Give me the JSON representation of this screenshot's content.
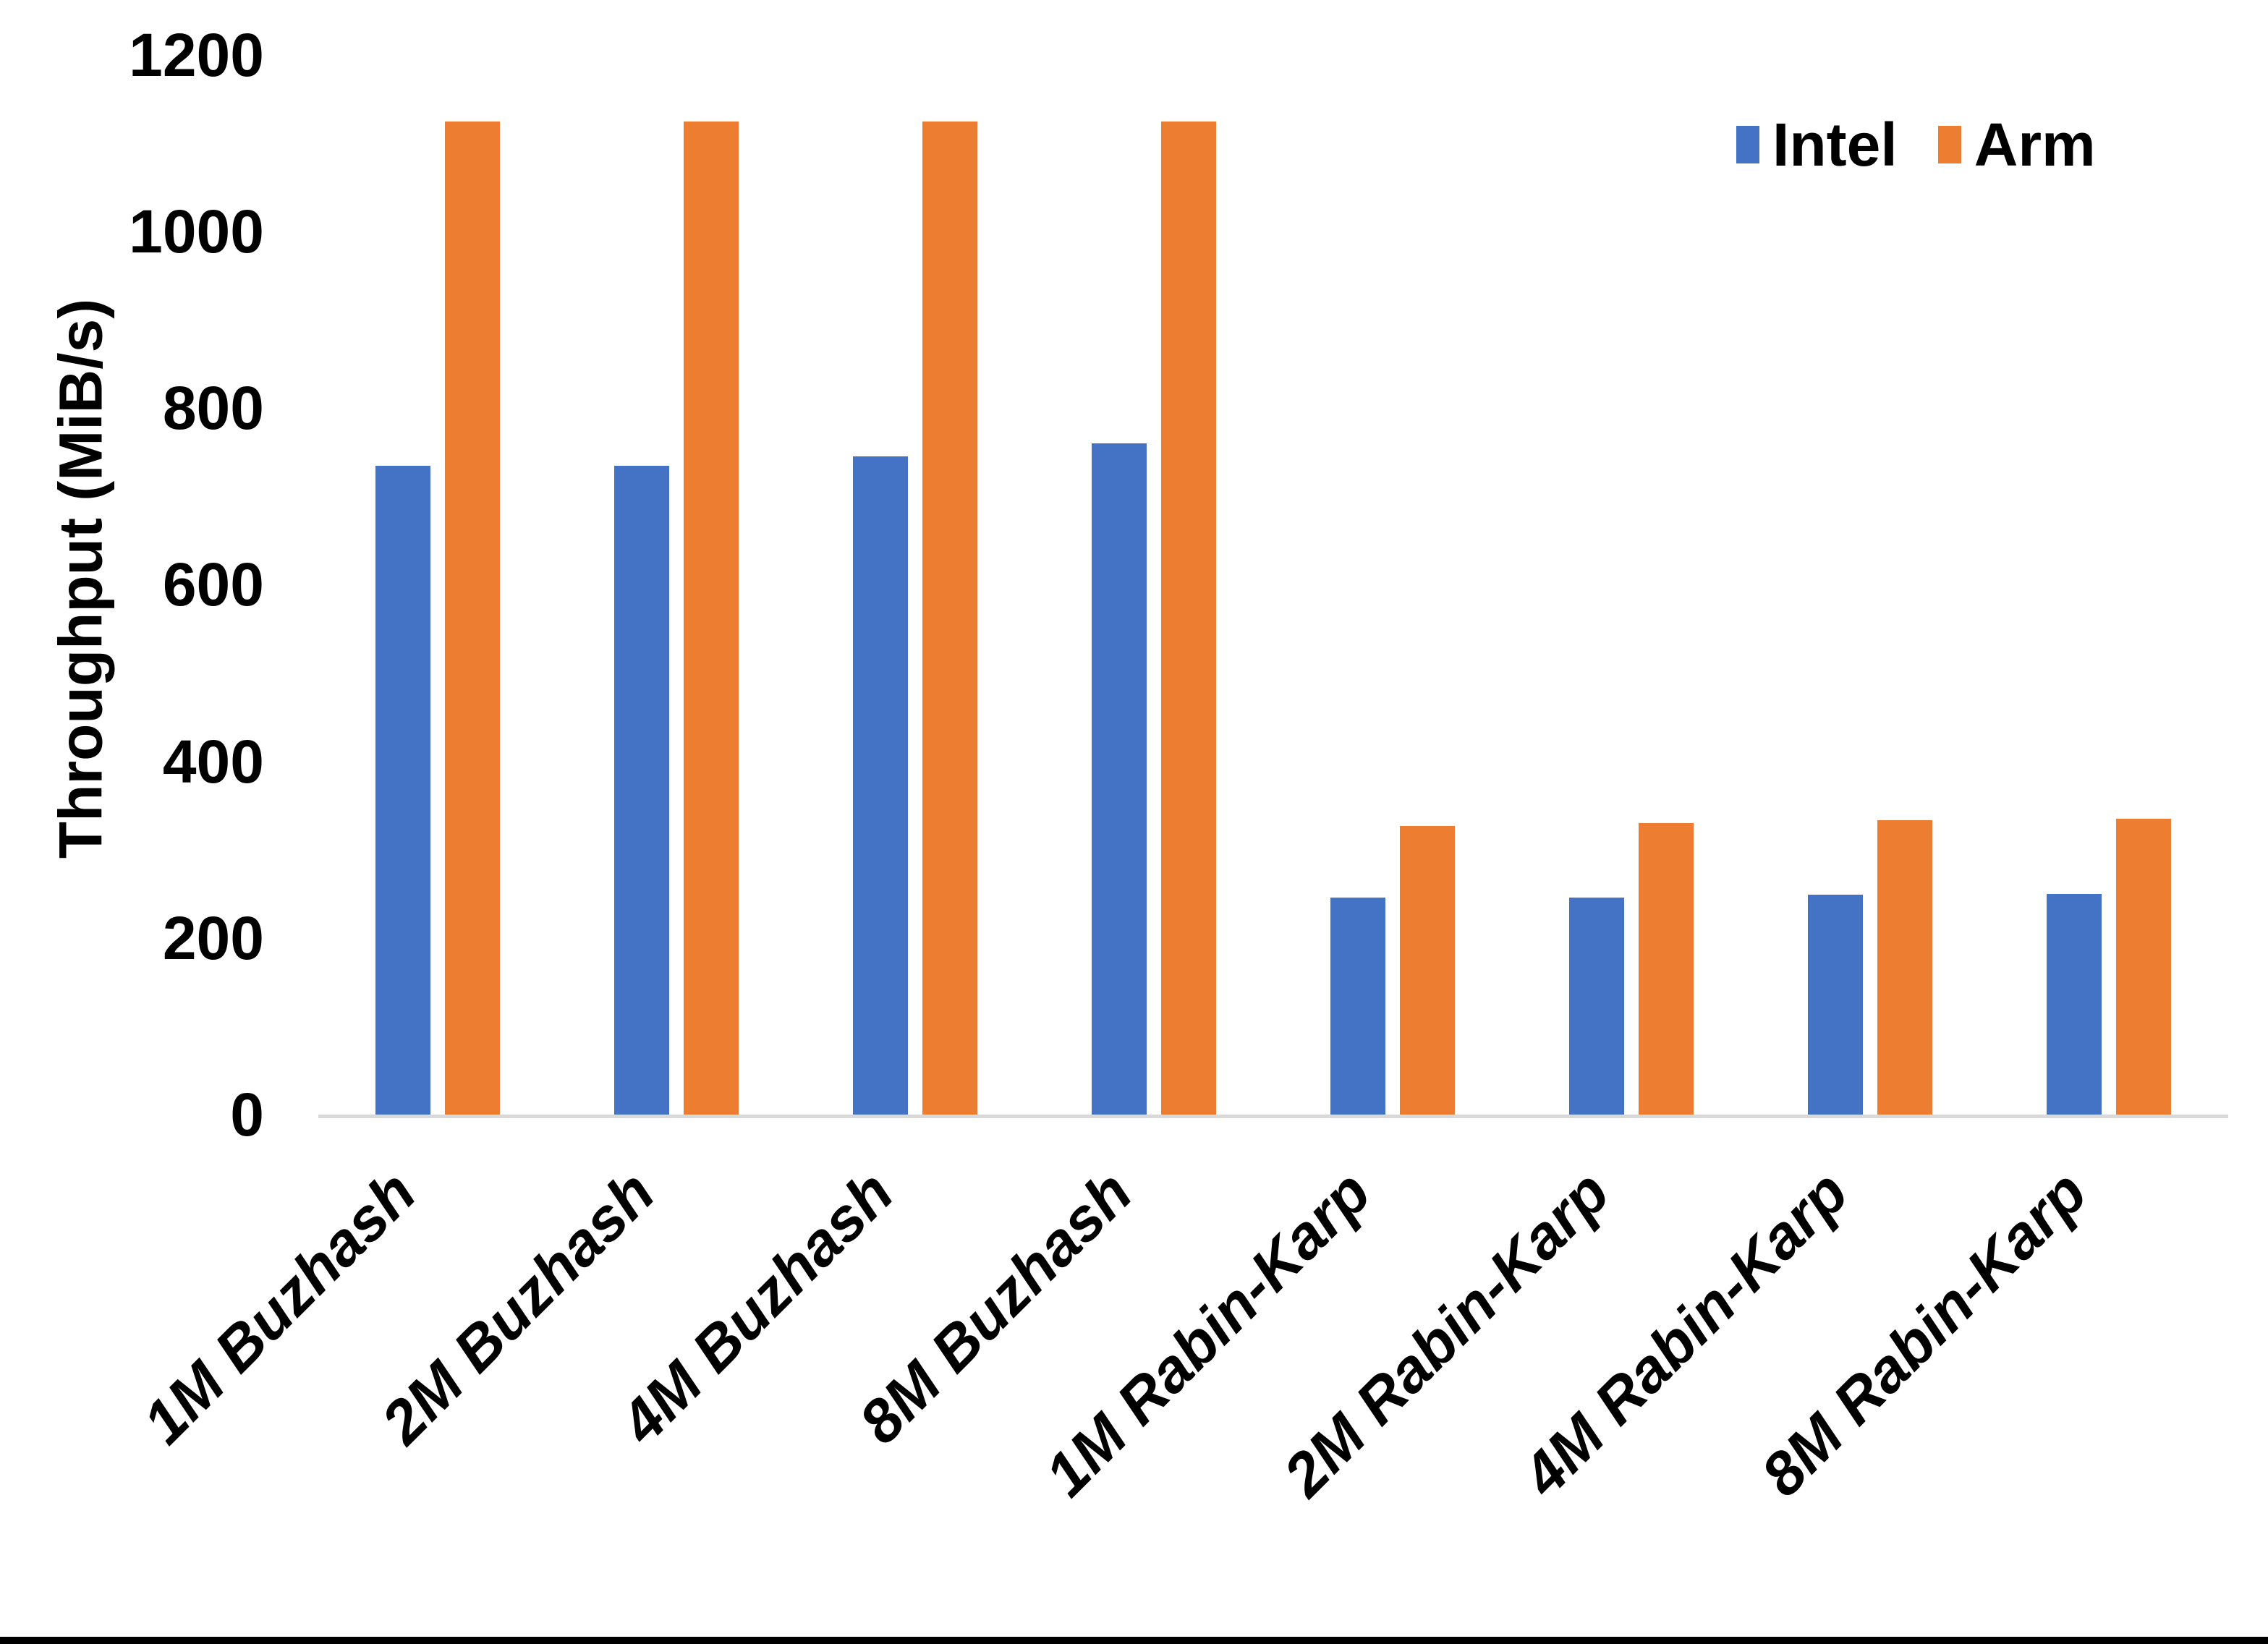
{
  "chart_data": {
    "type": "bar",
    "title": "",
    "xlabel": "",
    "ylabel": "Throughput (MiB/s)",
    "ylim": [
      0,
      1200
    ],
    "y_ticks": [
      0,
      200,
      400,
      600,
      800,
      1000,
      1200
    ],
    "grid": false,
    "legend_position": "top-right",
    "categories": [
      "1M Buzhash",
      "2M Buzhash",
      "4M Buzhash",
      "8M Buzhash",
      "1M Rabin-Karp",
      "2M Rabin-Karp",
      "4M Rabin-Karp",
      "8M Rabin-Karp"
    ],
    "series": [
      {
        "name": "Intel",
        "color": "#4472C4",
        "values": [
          735,
          735,
          745,
          760,
          246,
          246,
          249,
          250
        ]
      },
      {
        "name": "Arm",
        "color": "#ED7D31",
        "values": [
          1125,
          1125,
          1125,
          1125,
          327,
          330,
          333,
          335
        ]
      }
    ]
  },
  "colors": {
    "background": "#FFFFFF",
    "axis_line": "#D9D9D9",
    "text": "#000000",
    "bottom_border": "#000000"
  }
}
